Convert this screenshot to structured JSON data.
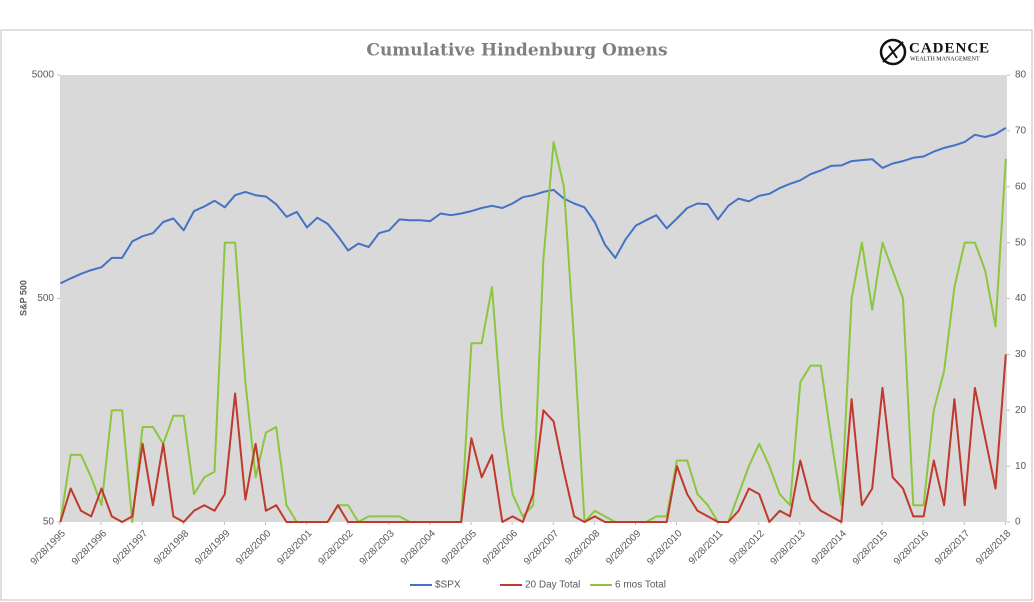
{
  "chart_data": {
    "type": "line",
    "title": "Cumulative Hindenburg Omens",
    "logo": {
      "name": "CADENCE",
      "tagline": "WEALTH MANAGEMENT"
    },
    "ylabel": "S&P 500",
    "ylog": true,
    "grid": false,
    "legend": "bottom",
    "xlim": [
      1995.74,
      2018.78
    ],
    "xticks": [
      {
        "value": 1995.74,
        "label": "9/28/1995"
      },
      {
        "value": 1996.74,
        "label": "9/28/1996"
      },
      {
        "value": 1997.74,
        "label": "9/28/1997"
      },
      {
        "value": 1998.74,
        "label": "9/28/1998"
      },
      {
        "value": 1999.74,
        "label": "9/28/1999"
      },
      {
        "value": 2000.74,
        "label": "9/28/2000"
      },
      {
        "value": 2001.74,
        "label": "9/28/2001"
      },
      {
        "value": 2002.74,
        "label": "9/28/2002"
      },
      {
        "value": 2003.74,
        "label": "9/28/2003"
      },
      {
        "value": 2004.74,
        "label": "9/28/2004"
      },
      {
        "value": 2005.74,
        "label": "9/28/2005"
      },
      {
        "value": 2006.74,
        "label": "9/28/2006"
      },
      {
        "value": 2007.74,
        "label": "9/28/2007"
      },
      {
        "value": 2008.74,
        "label": "9/28/2008"
      },
      {
        "value": 2009.74,
        "label": "9/28/2009"
      },
      {
        "value": 2010.74,
        "label": "9/28/2010"
      },
      {
        "value": 2011.74,
        "label": "9/28/2011"
      },
      {
        "value": 2012.74,
        "label": "9/28/2012"
      },
      {
        "value": 2013.74,
        "label": "9/28/2013"
      },
      {
        "value": 2014.74,
        "label": "9/28/2014"
      },
      {
        "value": 2015.74,
        "label": "9/28/2015"
      },
      {
        "value": 2016.74,
        "label": "9/28/2016"
      },
      {
        "value": 2017.74,
        "label": "9/28/2017"
      },
      {
        "value": 2018.74,
        "label": "9/28/2018"
      }
    ],
    "ylim": [
      50,
      5000
    ],
    "yticks": [
      50,
      500,
      5000
    ],
    "y2lim": [
      0,
      80
    ],
    "y2ticks": [
      0,
      10,
      20,
      30,
      40,
      50,
      60,
      70,
      80
    ],
    "x": [
      1995.75,
      1996.0,
      1996.25,
      1996.5,
      1996.75,
      1997.0,
      1997.25,
      1997.5,
      1997.75,
      1998.0,
      1998.25,
      1998.5,
      1998.75,
      1999.0,
      1999.25,
      1999.5,
      1999.75,
      2000.0,
      2000.25,
      2000.5,
      2000.75,
      2001.0,
      2001.25,
      2001.5,
      2001.75,
      2002.0,
      2002.25,
      2002.5,
      2002.75,
      2003.0,
      2003.25,
      2003.5,
      2003.75,
      2004.0,
      2004.25,
      2004.5,
      2004.75,
      2005.0,
      2005.25,
      2005.5,
      2005.75,
      2006.0,
      2006.25,
      2006.5,
      2006.75,
      2007.0,
      2007.25,
      2007.5,
      2007.75,
      2008.0,
      2008.25,
      2008.5,
      2008.75,
      2009.0,
      2009.25,
      2009.5,
      2009.75,
      2010.0,
      2010.25,
      2010.5,
      2010.75,
      2011.0,
      2011.25,
      2011.5,
      2011.75,
      2012.0,
      2012.25,
      2012.5,
      2012.75,
      2013.0,
      2013.25,
      2013.5,
      2013.75,
      2014.0,
      2014.25,
      2014.5,
      2014.75,
      2015.0,
      2015.25,
      2015.5,
      2015.75,
      2016.0,
      2016.25,
      2016.5,
      2016.75,
      2017.0,
      2017.25,
      2017.5,
      2017.75,
      2018.0,
      2018.25,
      2018.5,
      2018.75
    ],
    "series": [
      {
        "name": "$SPX",
        "color": "#4472c4",
        "axis": "y",
        "values": [
          584,
          615,
          645,
          670,
          690,
          760,
          760,
          900,
          950,
          980,
          1100,
          1140,
          1010,
          1230,
          1290,
          1370,
          1280,
          1450,
          1500,
          1450,
          1430,
          1320,
          1160,
          1220,
          1040,
          1150,
          1080,
          950,
          820,
          880,
          850,
          980,
          1010,
          1130,
          1120,
          1120,
          1110,
          1200,
          1180,
          1200,
          1230,
          1270,
          1300,
          1270,
          1330,
          1420,
          1450,
          1500,
          1530,
          1400,
          1330,
          1280,
          1100,
          870,
          760,
          920,
          1060,
          1120,
          1180,
          1030,
          1140,
          1270,
          1330,
          1320,
          1130,
          1300,
          1400,
          1360,
          1440,
          1470,
          1560,
          1630,
          1690,
          1800,
          1870,
          1960,
          1970,
          2060,
          2080,
          2100,
          1920,
          2010,
          2060,
          2130,
          2160,
          2270,
          2360,
          2420,
          2510,
          2700,
          2640,
          2720,
          2900
        ]
      },
      {
        "name": "20 Day Total",
        "color": "#c0392b",
        "axis": "y2",
        "values": [
          0,
          6,
          2,
          1,
          6,
          1,
          0,
          1,
          14,
          3,
          14,
          1,
          0,
          2,
          3,
          2,
          5,
          23,
          4,
          14,
          2,
          3,
          0,
          0,
          0,
          0,
          0,
          3,
          0,
          0,
          0,
          0,
          0,
          0,
          0,
          0,
          0,
          0,
          0,
          0,
          15,
          8,
          12,
          0,
          1,
          0,
          5,
          20,
          18,
          9,
          1,
          0,
          1,
          0,
          0,
          0,
          0,
          0,
          0,
          0,
          10,
          5,
          2,
          1,
          0,
          0,
          2,
          6,
          5,
          0,
          2,
          1,
          11,
          4,
          2,
          1,
          0,
          22,
          3,
          6,
          24,
          8,
          6,
          1,
          1,
          11,
          3,
          22,
          3,
          24,
          15,
          6,
          30
        ]
      },
      {
        "name": "6 mos Total",
        "color": "#8cc63f",
        "axis": "y2",
        "values": [
          0,
          12,
          12,
          8,
          3,
          20,
          20,
          0,
          17,
          17,
          14,
          19,
          19,
          5,
          8,
          9,
          50,
          50,
          25,
          8,
          16,
          17,
          3,
          0,
          0,
          0,
          0,
          3,
          3,
          0,
          1,
          1,
          1,
          1,
          0,
          0,
          0,
          0,
          0,
          0,
          32,
          32,
          42,
          18,
          5,
          1,
          3,
          47,
          68,
          60,
          32,
          0,
          2,
          1,
          0,
          0,
          0,
          0,
          1,
          1,
          11,
          11,
          5,
          3,
          0,
          0,
          5,
          10,
          14,
          10,
          5,
          3,
          25,
          28,
          28,
          15,
          3,
          40,
          50,
          38,
          50,
          45,
          40,
          3,
          3,
          20,
          27,
          42,
          50,
          50,
          45,
          35,
          65
        ]
      }
    ]
  }
}
